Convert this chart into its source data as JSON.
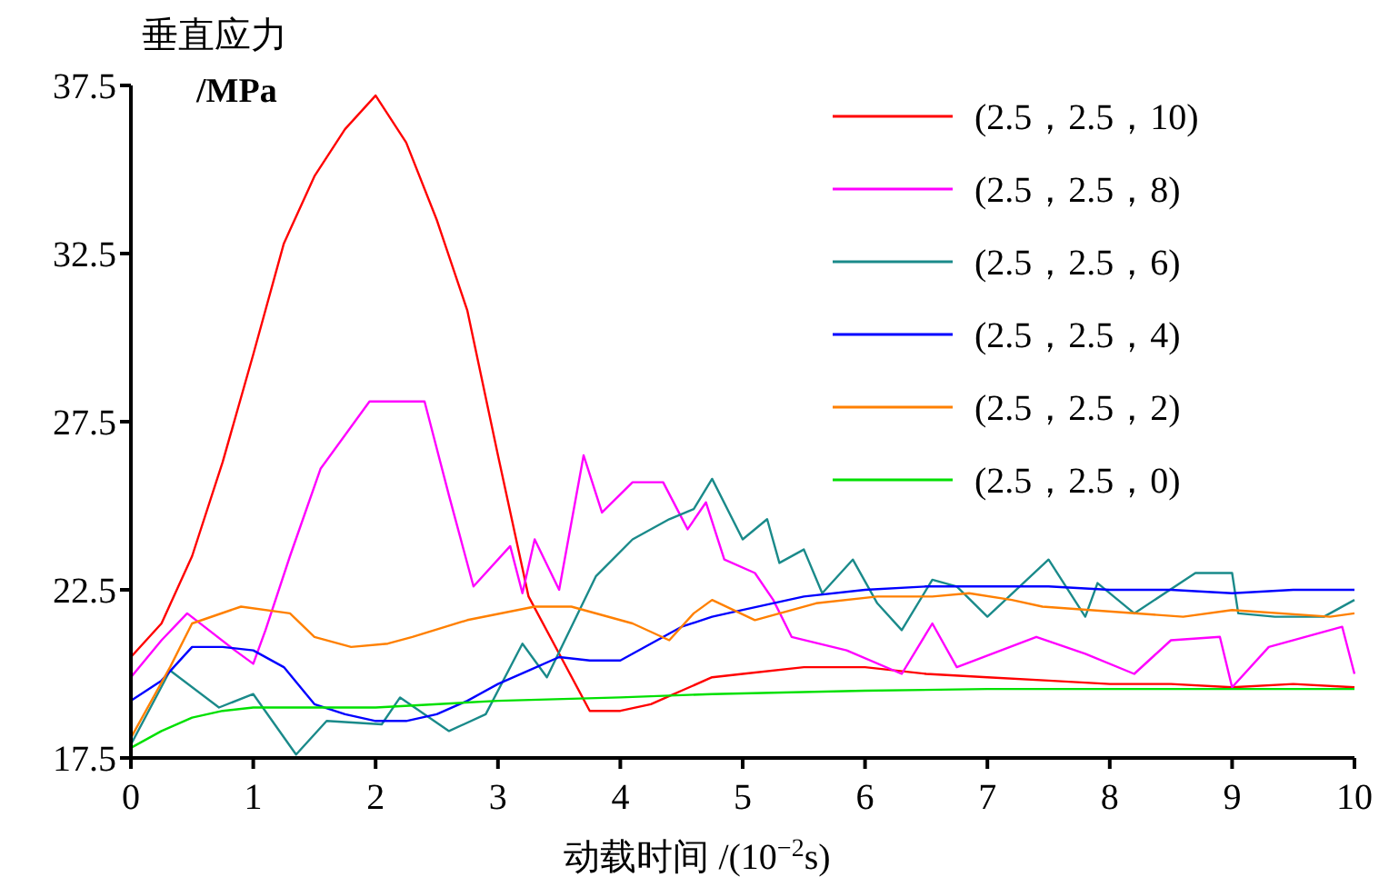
{
  "chart_data": {
    "type": "line",
    "ylabel": "垂直应力 /MPa",
    "xlabel": "动载时间 /(10$^{−2}$s)",
    "xlim": [
      0,
      10
    ],
    "ylim": [
      17.5,
      37.5
    ],
    "xticks": [
      0,
      1,
      2,
      3,
      4,
      5,
      6,
      7,
      8,
      9,
      10
    ],
    "yticks": [
      17.5,
      22.5,
      27.5,
      32.5,
      37.5
    ],
    "legend": "top right",
    "series": [
      {
        "name": "(2.5，2.5，10)",
        "color": "#ff0000",
        "x": [
          0,
          0.25,
          0.5,
          0.75,
          1,
          1.25,
          1.5,
          1.75,
          2,
          2.25,
          2.5,
          2.75,
          3,
          3.25,
          3.5,
          3.75,
          4,
          4.25,
          4.5,
          4.75,
          5,
          5.5,
          6,
          6.5,
          7,
          7.5,
          8,
          8.5,
          9,
          9.5,
          10
        ],
        "values": [
          20.5,
          21.5,
          23.5,
          26.3,
          29.5,
          32.8,
          34.8,
          36.2,
          37.2,
          35.8,
          33.5,
          30.8,
          26.5,
          22.3,
          20.6,
          18.9,
          18.9,
          19.1,
          19.5,
          19.9,
          20,
          20.2,
          20.2,
          20,
          19.9,
          19.8,
          19.7,
          19.7,
          19.6,
          19.7,
          19.6
        ]
      },
      {
        "name": "(2.5，2.5，8)",
        "color": "#ff00ff",
        "x": [
          0,
          0.25,
          0.46,
          0.85,
          1,
          1.1,
          1.3,
          1.55,
          1.95,
          2.4,
          2.6,
          2.8,
          3.1,
          3.2,
          3.3,
          3.5,
          3.7,
          3.85,
          4.1,
          4.35,
          4.55,
          4.7,
          4.85,
          5.1,
          5.25,
          5.4,
          5.85,
          6.3,
          6.55,
          6.75,
          7.4,
          7.8,
          8.2,
          8.5,
          8.9,
          9,
          9.3,
          9.9,
          10
        ],
        "values": [
          19.9,
          21,
          21.8,
          20.7,
          20.3,
          21.3,
          23.5,
          26.1,
          28.1,
          28.1,
          25.3,
          22.6,
          23.8,
          22.4,
          24,
          22.5,
          26.5,
          24.8,
          25.7,
          25.7,
          24.3,
          25.1,
          23.4,
          23,
          22.2,
          21.1,
          20.7,
          20,
          21.5,
          20.2,
          21.1,
          20.6,
          20,
          21,
          21.1,
          19.6,
          20.8,
          21.4,
          20
        ]
      },
      {
        "name": "(2.5，2.5，6)",
        "color": "#1a8a8a",
        "x": [
          0,
          0.32,
          0.72,
          1,
          1.35,
          1.6,
          2.05,
          2.2,
          2.6,
          2.9,
          3.2,
          3.4,
          3.8,
          4.1,
          4.4,
          4.6,
          4.75,
          5,
          5.2,
          5.3,
          5.5,
          5.65,
          5.9,
          6.1,
          6.3,
          6.55,
          6.75,
          7,
          7.5,
          7.8,
          7.9,
          8.2,
          8.7,
          9,
          9.05,
          9.35,
          9.75,
          10
        ],
        "values": [
          17.9,
          20.1,
          19,
          19.4,
          17.6,
          18.6,
          18.5,
          19.3,
          18.3,
          18.8,
          20.9,
          19.9,
          22.9,
          24,
          24.6,
          24.9,
          25.8,
          24,
          24.6,
          23.3,
          23.7,
          22.4,
          23.4,
          22.1,
          21.3,
          22.8,
          22.6,
          21.7,
          23.4,
          21.7,
          22.7,
          21.8,
          23,
          23,
          21.8,
          21.7,
          21.7,
          22.2
        ]
      },
      {
        "name": "(2.5，2.5，4)",
        "color": "#0000ff",
        "x": [
          0,
          0.25,
          0.5,
          0.75,
          1,
          1.25,
          1.5,
          1.75,
          2,
          2.25,
          2.5,
          2.75,
          3,
          3.25,
          3.5,
          3.75,
          4,
          4.25,
          4.5,
          4.75,
          5,
          5.5,
          6,
          6.5,
          7,
          7.5,
          8,
          8.5,
          9,
          9.5,
          10
        ],
        "values": [
          19.2,
          19.8,
          20.8,
          20.8,
          20.7,
          20.2,
          19.1,
          18.8,
          18.6,
          18.6,
          18.8,
          19.2,
          19.7,
          20.1,
          20.5,
          20.4,
          20.4,
          20.9,
          21.4,
          21.7,
          21.9,
          22.3,
          22.5,
          22.6,
          22.6,
          22.6,
          22.5,
          22.5,
          22.4,
          22.5,
          22.5
        ]
      },
      {
        "name": "(2.5，2.5，2)",
        "color": "#ff8000",
        "x": [
          0,
          0.32,
          0.5,
          0.9,
          1.3,
          1.5,
          1.8,
          2.1,
          2.3,
          2.75,
          3.3,
          3.6,
          4.1,
          4.4,
          4.6,
          4.75,
          5.1,
          5.6,
          6.1,
          6.55,
          6.85,
          7.2,
          7.45,
          8.6,
          9,
          9.8,
          10
        ],
        "values": [
          18.1,
          20.2,
          21.5,
          22,
          21.8,
          21.1,
          20.8,
          20.9,
          21.1,
          21.6,
          22,
          22,
          21.5,
          21,
          21.8,
          22.2,
          21.6,
          22.1,
          22.3,
          22.3,
          22.4,
          22.2,
          22,
          21.7,
          21.9,
          21.7,
          21.8
        ]
      },
      {
        "name": "(2.5，2.5，0)",
        "color": "#00e000",
        "x": [
          0,
          0.25,
          0.5,
          0.75,
          1,
          1.5,
          2,
          3,
          4,
          4.75,
          6,
          7,
          8,
          9,
          10
        ],
        "values": [
          17.8,
          18.3,
          18.7,
          18.9,
          19,
          19,
          19,
          19.2,
          19.3,
          19.4,
          19.5,
          19.55,
          19.55,
          19.55,
          19.55
        ]
      }
    ]
  }
}
